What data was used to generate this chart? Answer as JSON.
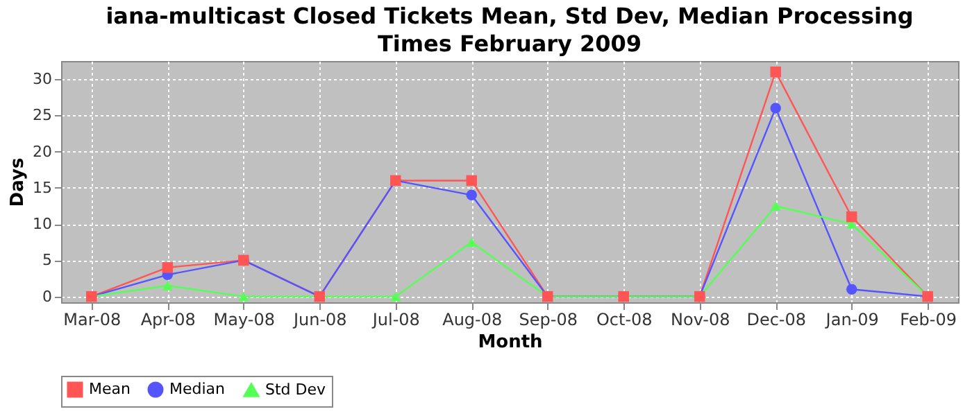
{
  "chart_data": {
    "type": "line",
    "title": "iana-multicast Closed Tickets Mean, Std Dev, Median Processing Times February 2009",
    "xlabel": "Month",
    "ylabel": "Days",
    "categories": [
      "Mar-08",
      "Apr-08",
      "May-08",
      "Jun-08",
      "Jul-08",
      "Aug-08",
      "Sep-08",
      "Oct-08",
      "Nov-08",
      "Dec-08",
      "Jan-09",
      "Feb-09"
    ],
    "series": [
      {
        "name": "Mean",
        "color": "#ff5555",
        "marker": "square",
        "values": [
          0,
          4,
          5,
          0,
          16,
          16,
          0,
          0,
          0,
          31,
          11,
          0
        ]
      },
      {
        "name": "Median",
        "color": "#5555ff",
        "marker": "circle",
        "values": [
          0,
          3,
          5,
          0,
          16,
          14,
          0,
          0,
          0,
          26,
          1,
          0
        ]
      },
      {
        "name": "Std Dev",
        "color": "#55ff55",
        "marker": "triangle",
        "values": [
          0,
          1.5,
          0,
          0,
          0,
          7.5,
          0,
          0,
          0,
          12.5,
          10,
          0
        ]
      }
    ],
    "ylim": [
      -0.8,
      32.5
    ],
    "yticks": [
      0,
      5,
      10,
      15,
      20,
      25,
      30
    ],
    "grid": true,
    "legend": "bottom"
  }
}
